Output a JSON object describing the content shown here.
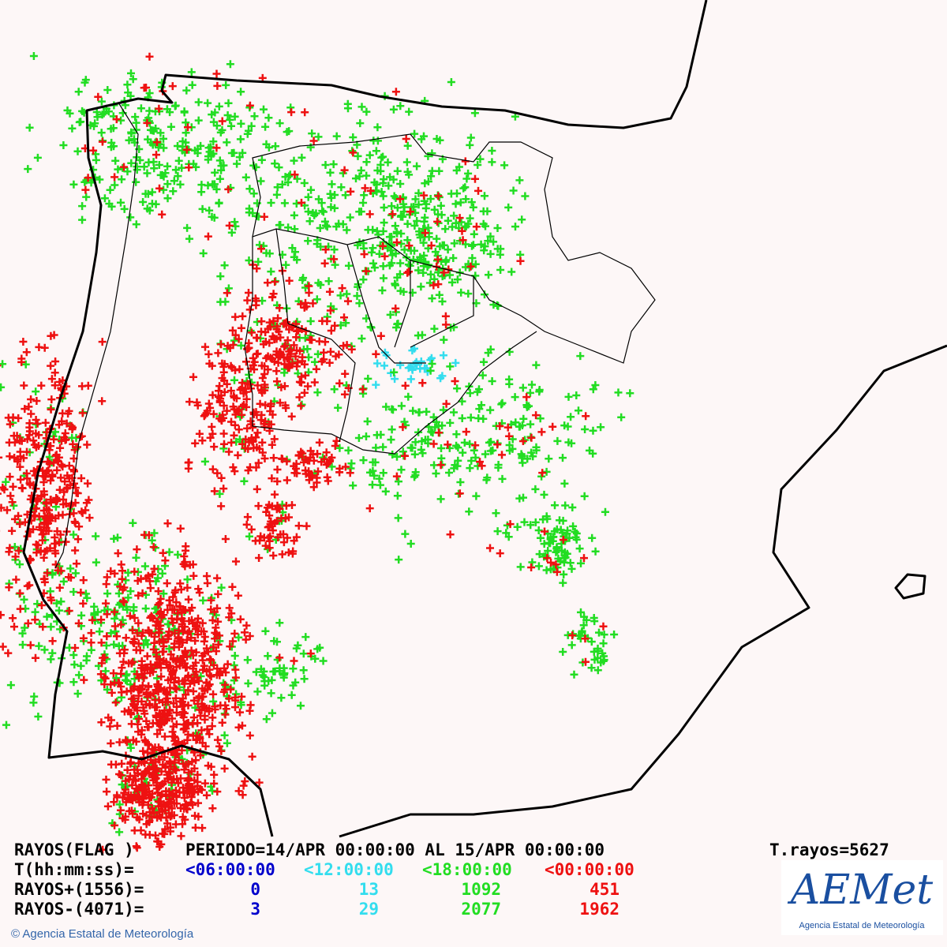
{
  "header": {
    "flag": "RAYOS(FLAG )",
    "period": "PERIODO=14/APR 00:00:00 AL 15/APR 00:00:00",
    "total": "T.rayos=5627"
  },
  "table": {
    "time_label": "T(hh:mm:ss)=",
    "columns": [
      {
        "label": "<06:00:00",
        "color": "#0000cc"
      },
      {
        "label": "<12:00:00",
        "color": "#33ddee"
      },
      {
        "label": "<18:00:00",
        "color": "#22dd22"
      },
      {
        "label": "<00:00:00",
        "color": "#ee1111"
      }
    ],
    "rows": [
      {
        "label": "RAYOS+(1556)=",
        "values": [
          0,
          13,
          1092,
          451
        ]
      },
      {
        "label": "RAYOS-(4071)=",
        "values": [
          3,
          29,
          2077,
          1962
        ]
      }
    ]
  },
  "footer": {
    "copyright": "© Agencia Estatal de Meteorología"
  },
  "logo": {
    "name": "AEMet",
    "subtitle": "Agencia Estatal de Meteorología"
  }
}
